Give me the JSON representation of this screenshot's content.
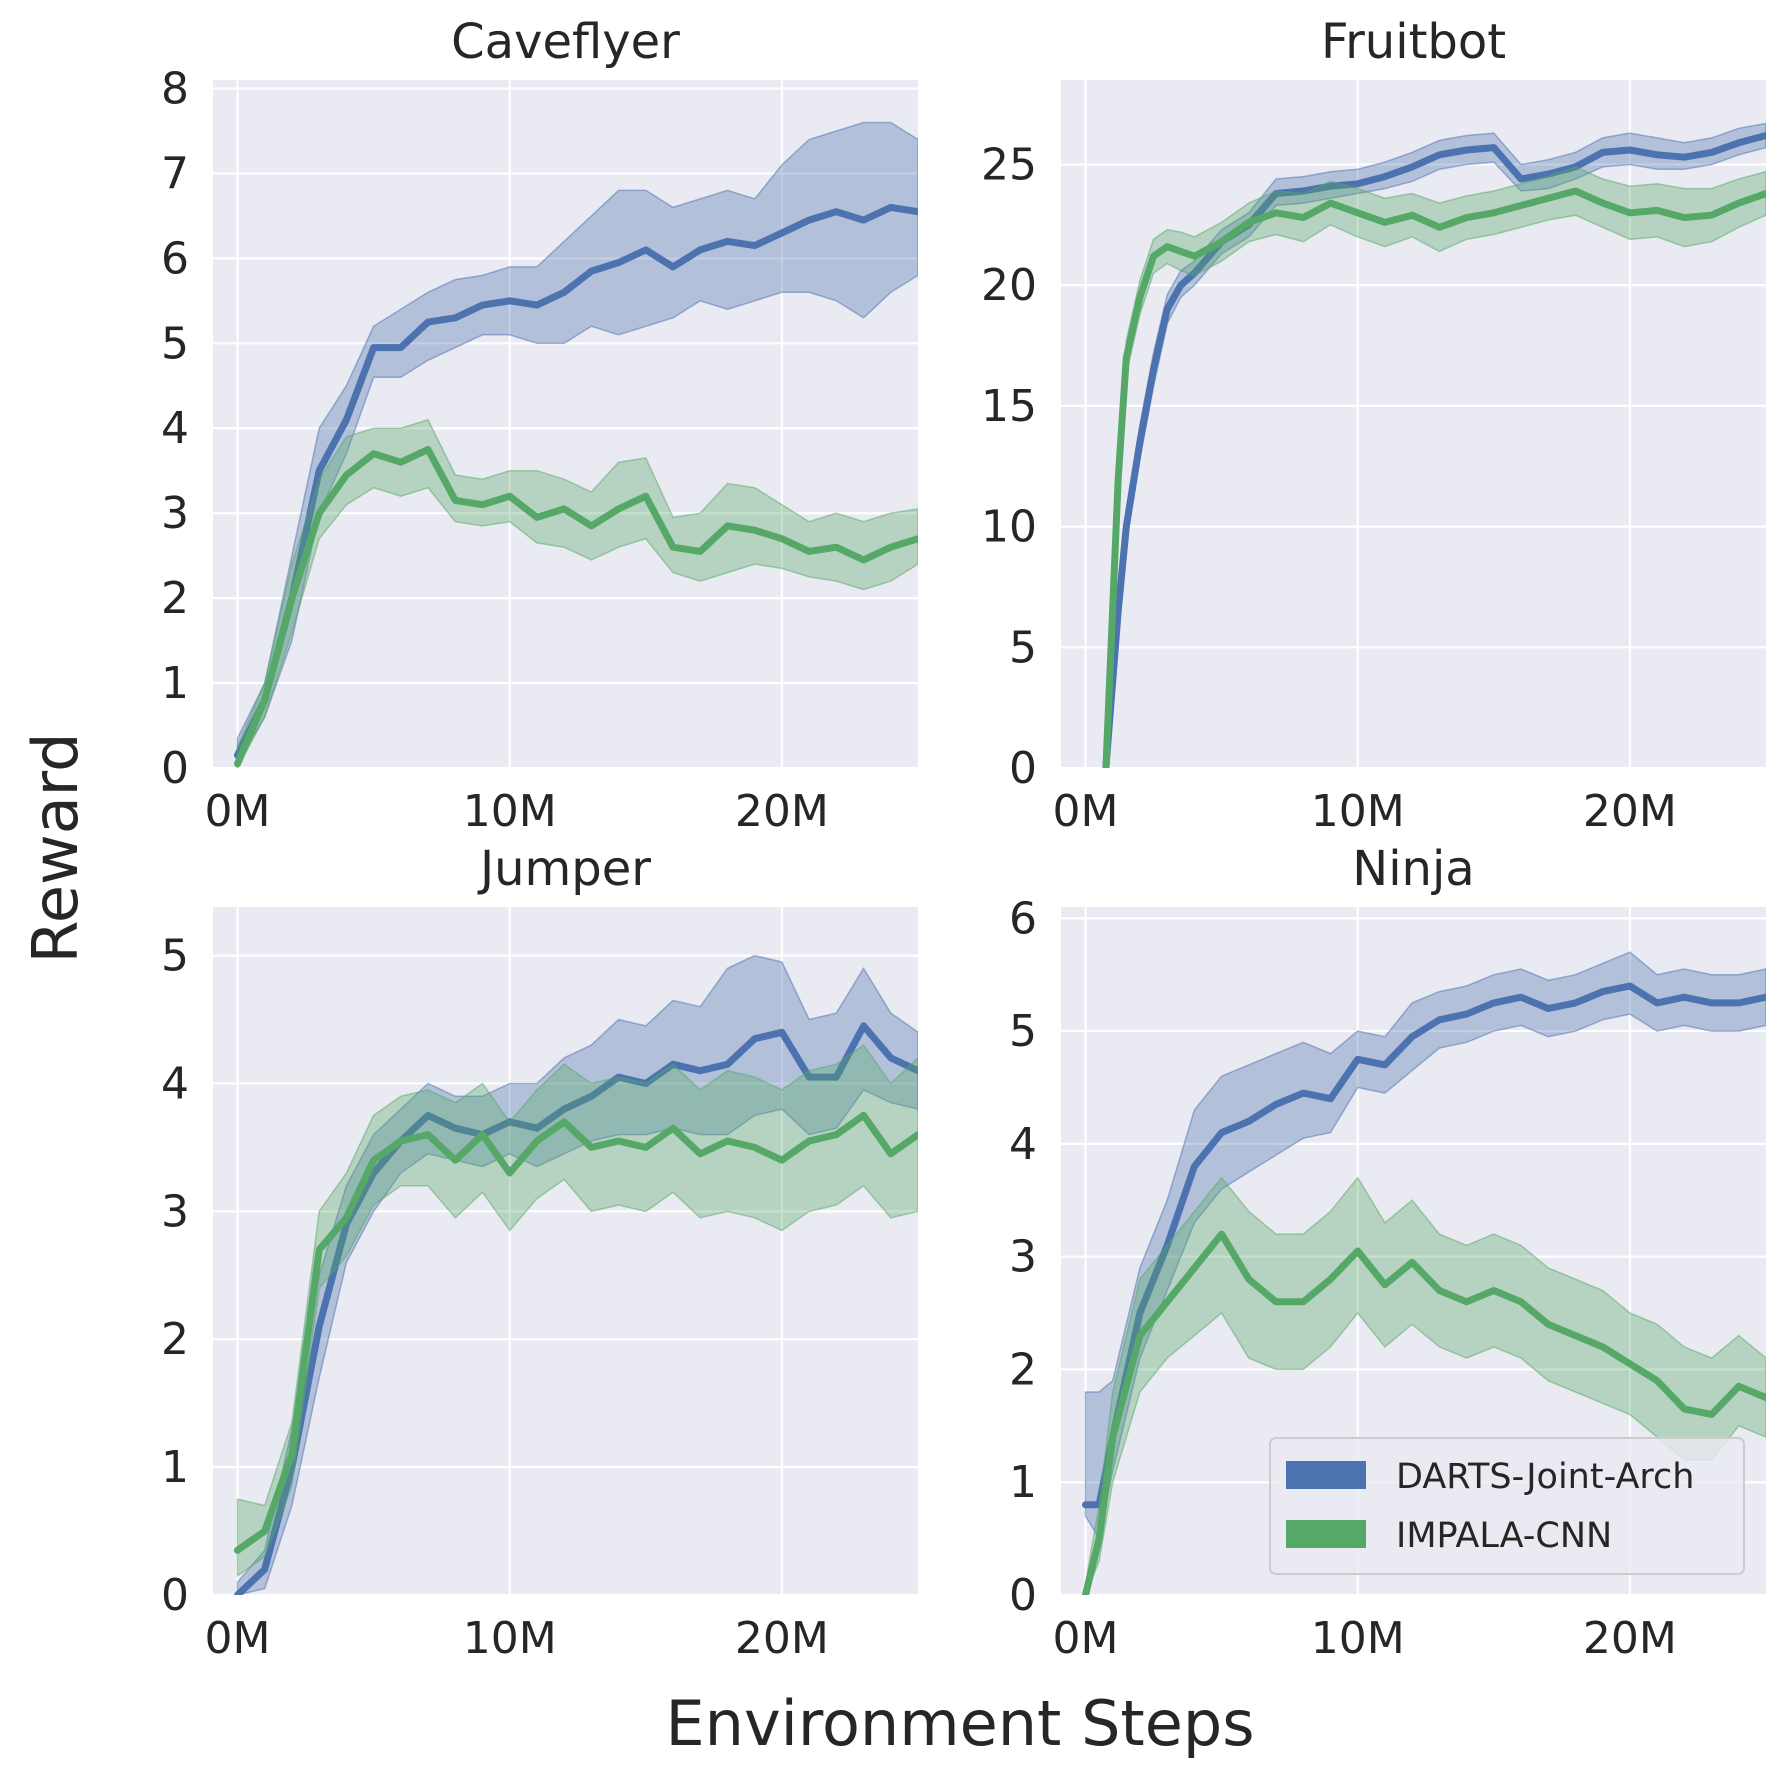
{
  "figure": {
    "xlabel": "Environment Steps",
    "ylabel": "Reward",
    "colors": {
      "background": "#eaeaf2",
      "grid": "#ffffff",
      "darts": "#4c72b0",
      "impala": "#55a868"
    }
  },
  "legend": {
    "position": "lower-right of Ninja panel",
    "entries": [
      {
        "label": "DARTS-Joint-Arch",
        "color": "#4c72b0"
      },
      {
        "label": "IMPALA-CNN",
        "color": "#55a868"
      }
    ]
  },
  "chart_data": [
    {
      "type": "line",
      "title": "Caveflyer",
      "xlim": [
        -0.9,
        25
      ],
      "ylim": [
        0,
        8.1
      ],
      "xticks": [
        0,
        10,
        20
      ],
      "xtick_labels": [
        "0M",
        "10M",
        "20M"
      ],
      "yticks": [
        0,
        1,
        2,
        3,
        4,
        5,
        6,
        7,
        8
      ],
      "ytick_labels": [
        "0",
        "1",
        "2",
        "3",
        "4",
        "5",
        "6",
        "7",
        "8"
      ],
      "x": [
        0,
        1,
        2,
        3,
        4,
        5,
        6,
        7,
        8,
        9,
        10,
        11,
        12,
        13,
        14,
        15,
        16,
        17,
        18,
        19,
        20,
        21,
        22,
        23,
        24,
        25
      ],
      "series": [
        {
          "name": "DARTS-Joint-Arch",
          "values": [
            0.15,
            0.8,
            2.0,
            3.5,
            4.1,
            4.95,
            4.95,
            5.25,
            5.3,
            5.45,
            5.5,
            5.45,
            5.6,
            5.85,
            5.95,
            6.1,
            5.9,
            6.1,
            6.2,
            6.15,
            6.3,
            6.45,
            6.55,
            6.45,
            6.6,
            6.55
          ],
          "lower": [
            0.05,
            0.6,
            1.5,
            3.0,
            3.7,
            4.6,
            4.6,
            4.8,
            4.95,
            5.1,
            5.1,
            5.0,
            5.0,
            5.2,
            5.1,
            5.2,
            5.3,
            5.5,
            5.4,
            5.5,
            5.6,
            5.6,
            5.5,
            5.3,
            5.6,
            5.8
          ],
          "upper": [
            0.35,
            1.0,
            2.5,
            4.0,
            4.5,
            5.2,
            5.4,
            5.6,
            5.75,
            5.8,
            5.9,
            5.9,
            6.2,
            6.5,
            6.8,
            6.8,
            6.6,
            6.7,
            6.8,
            6.7,
            7.1,
            7.4,
            7.5,
            7.6,
            7.6,
            7.4
          ]
        },
        {
          "name": "IMPALA-CNN",
          "values": [
            0.05,
            0.8,
            2.0,
            3.0,
            3.45,
            3.7,
            3.6,
            3.75,
            3.15,
            3.1,
            3.2,
            2.95,
            3.05,
            2.85,
            3.05,
            3.2,
            2.6,
            2.55,
            2.85,
            2.8,
            2.7,
            2.55,
            2.6,
            2.45,
            2.6,
            2.7
          ],
          "lower": [
            0.0,
            0.6,
            1.6,
            2.7,
            3.1,
            3.3,
            3.2,
            3.3,
            2.9,
            2.85,
            2.9,
            2.65,
            2.6,
            2.45,
            2.6,
            2.7,
            2.3,
            2.2,
            2.3,
            2.4,
            2.35,
            2.25,
            2.2,
            2.1,
            2.2,
            2.4
          ],
          "upper": [
            0.25,
            1.0,
            2.4,
            3.4,
            3.9,
            4.0,
            4.0,
            4.1,
            3.45,
            3.4,
            3.5,
            3.5,
            3.4,
            3.25,
            3.6,
            3.65,
            2.95,
            3.0,
            3.35,
            3.3,
            3.1,
            2.9,
            3.0,
            2.9,
            3.0,
            3.05
          ]
        }
      ]
    },
    {
      "type": "line",
      "title": "Fruitbot",
      "xlim": [
        -0.9,
        25
      ],
      "ylim": [
        0,
        28.5
      ],
      "xticks": [
        0,
        10,
        20
      ],
      "xtick_labels": [
        "0M",
        "10M",
        "20M"
      ],
      "yticks": [
        0,
        5,
        10,
        15,
        20,
        25
      ],
      "ytick_labels": [
        "0",
        "5",
        "10",
        "15",
        "20",
        "25"
      ],
      "x": [
        0.75,
        1.2,
        1.5,
        2,
        2.5,
        3,
        3.5,
        4,
        5,
        6,
        7,
        8,
        9,
        10,
        11,
        12,
        13,
        14,
        15,
        16,
        17,
        18,
        19,
        20,
        21,
        22,
        23,
        24,
        25
      ],
      "series": [
        {
          "name": "DARTS-Joint-Arch",
          "values": [
            0,
            6.5,
            10,
            13.5,
            16.5,
            19,
            20,
            20.5,
            21.8,
            22.5,
            23.8,
            23.9,
            24.1,
            24.2,
            24.5,
            24.9,
            25.4,
            25.6,
            25.7,
            24.4,
            24.6,
            24.9,
            25.5,
            25.6,
            25.4,
            25.3,
            25.5,
            25.9,
            26.2
          ],
          "lower": [
            0,
            5.8,
            9.3,
            12.8,
            15.8,
            18.4,
            19.5,
            20.0,
            21.3,
            22.0,
            23.3,
            23.4,
            23.6,
            23.8,
            24.0,
            24.3,
            24.8,
            25.0,
            25.1,
            23.9,
            24.0,
            24.4,
            24.9,
            25.0,
            24.8,
            24.8,
            25.0,
            25.4,
            25.7
          ],
          "upper": [
            0,
            7.2,
            10.7,
            14.2,
            17.2,
            19.6,
            20.6,
            21.0,
            22.3,
            23.0,
            24.4,
            24.5,
            24.7,
            24.8,
            25.1,
            25.5,
            26.0,
            26.2,
            26.3,
            25.0,
            25.2,
            25.5,
            26.1,
            26.3,
            26.1,
            25.9,
            26.1,
            26.5,
            26.7
          ]
        },
        {
          "name": "IMPALA-CNN",
          "values": [
            0,
            12,
            17,
            19.5,
            21.2,
            21.6,
            21.4,
            21.2,
            21.8,
            22.6,
            23.0,
            22.8,
            23.4,
            23.0,
            22.6,
            22.9,
            22.4,
            22.8,
            23.0,
            23.3,
            23.6,
            23.9,
            23.4,
            23.0,
            23.1,
            22.8,
            22.9,
            23.4,
            23.8
          ],
          "lower": [
            0,
            11.3,
            16.3,
            18.8,
            20.5,
            20.9,
            20.6,
            20.4,
            21.0,
            21.8,
            22.1,
            21.8,
            22.5,
            22.0,
            21.6,
            22.0,
            21.4,
            21.9,
            22.1,
            22.4,
            22.7,
            22.9,
            22.4,
            21.9,
            22.0,
            21.6,
            21.8,
            22.4,
            22.9
          ],
          "upper": [
            0,
            12.7,
            17.7,
            20.2,
            21.9,
            22.3,
            22.2,
            22.0,
            22.6,
            23.4,
            23.9,
            23.8,
            24.3,
            24.0,
            23.6,
            23.8,
            23.4,
            23.7,
            23.9,
            24.2,
            24.5,
            24.9,
            24.4,
            24.1,
            24.2,
            24.0,
            24.0,
            24.4,
            24.7
          ]
        }
      ]
    },
    {
      "type": "line",
      "title": "Jumper",
      "xlim": [
        -0.9,
        25
      ],
      "ylim": [
        0,
        5.38
      ],
      "xticks": [
        0,
        10,
        20
      ],
      "xtick_labels": [
        "0M",
        "10M",
        "20M"
      ],
      "yticks": [
        0,
        1,
        2,
        3,
        4,
        5
      ],
      "ytick_labels": [
        "0",
        "1",
        "2",
        "3",
        "4",
        "5"
      ],
      "x": [
        0,
        1,
        2,
        3,
        4,
        5,
        6,
        7,
        8,
        9,
        10,
        11,
        12,
        13,
        14,
        15,
        16,
        17,
        18,
        19,
        20,
        21,
        22,
        23,
        24,
        25
      ],
      "series": [
        {
          "name": "DARTS-Joint-Arch",
          "values": [
            0.0,
            0.2,
            1.0,
            2.1,
            2.9,
            3.3,
            3.55,
            3.75,
            3.65,
            3.6,
            3.7,
            3.65,
            3.8,
            3.9,
            4.05,
            4.0,
            4.15,
            4.1,
            4.15,
            4.35,
            4.4,
            4.05,
            4.05,
            4.45,
            4.2,
            4.1
          ],
          "lower": [
            0.0,
            0.05,
            0.7,
            1.7,
            2.6,
            3.0,
            3.3,
            3.45,
            3.4,
            3.35,
            3.45,
            3.35,
            3.45,
            3.55,
            3.6,
            3.6,
            3.65,
            3.6,
            3.6,
            3.75,
            3.8,
            3.6,
            3.65,
            3.95,
            3.85,
            3.8
          ],
          "upper": [
            0.1,
            0.35,
            1.3,
            2.5,
            3.2,
            3.6,
            3.8,
            4.0,
            3.9,
            3.9,
            4.0,
            4.0,
            4.2,
            4.3,
            4.5,
            4.45,
            4.65,
            4.6,
            4.9,
            5.0,
            4.95,
            4.5,
            4.55,
            4.9,
            4.55,
            4.4
          ]
        },
        {
          "name": "IMPALA-CNN",
          "values": [
            0.35,
            0.5,
            1.1,
            2.7,
            2.95,
            3.4,
            3.55,
            3.6,
            3.4,
            3.6,
            3.3,
            3.55,
            3.7,
            3.5,
            3.55,
            3.5,
            3.65,
            3.45,
            3.55,
            3.5,
            3.4,
            3.55,
            3.6,
            3.75,
            3.45,
            3.6
          ],
          "lower": [
            0.15,
            0.3,
            0.85,
            2.4,
            2.65,
            3.05,
            3.2,
            3.2,
            2.95,
            3.15,
            2.85,
            3.1,
            3.25,
            3.0,
            3.05,
            3.0,
            3.15,
            2.95,
            3.0,
            2.95,
            2.85,
            3.0,
            3.05,
            3.2,
            2.95,
            3.0
          ],
          "upper": [
            0.75,
            0.7,
            1.35,
            3.0,
            3.3,
            3.75,
            3.9,
            3.95,
            3.85,
            4.0,
            3.7,
            3.95,
            4.15,
            4.0,
            4.05,
            4.0,
            4.15,
            3.95,
            4.1,
            4.05,
            3.95,
            4.1,
            4.15,
            4.3,
            4.0,
            4.2
          ]
        }
      ]
    },
    {
      "type": "line",
      "title": "Ninja",
      "xlim": [
        -0.9,
        25
      ],
      "ylim": [
        0,
        6.1
      ],
      "xticks": [
        0,
        10,
        20
      ],
      "xtick_labels": [
        "0M",
        "10M",
        "20M"
      ],
      "yticks": [
        0,
        1,
        2,
        3,
        4,
        5,
        6
      ],
      "ytick_labels": [
        "0",
        "1",
        "2",
        "3",
        "4",
        "5",
        "6"
      ],
      "x": [
        0,
        0.5,
        1,
        2,
        3,
        4,
        5,
        6,
        7,
        8,
        9,
        10,
        11,
        12,
        13,
        14,
        15,
        16,
        17,
        18,
        19,
        20,
        21,
        22,
        23,
        24,
        25
      ],
      "series": [
        {
          "name": "DARTS-Joint-Arch",
          "values": [
            0.8,
            0.8,
            1.4,
            2.5,
            3.1,
            3.8,
            4.1,
            4.2,
            4.35,
            4.45,
            4.4,
            4.75,
            4.7,
            4.95,
            5.1,
            5.15,
            5.25,
            5.3,
            5.2,
            5.25,
            5.35,
            5.4,
            5.25,
            5.3,
            5.25,
            5.25,
            5.3
          ],
          "lower": [
            0.7,
            0.5,
            1.1,
            2.1,
            2.7,
            3.3,
            3.6,
            3.75,
            3.9,
            4.05,
            4.1,
            4.5,
            4.45,
            4.65,
            4.85,
            4.9,
            5.0,
            5.05,
            4.95,
            5.0,
            5.1,
            5.15,
            5.0,
            5.05,
            5.0,
            5.0,
            5.05
          ],
          "upper": [
            1.8,
            1.8,
            1.9,
            2.9,
            3.5,
            4.3,
            4.6,
            4.7,
            4.8,
            4.9,
            4.8,
            5.0,
            4.95,
            5.25,
            5.35,
            5.4,
            5.5,
            5.55,
            5.45,
            5.5,
            5.6,
            5.7,
            5.5,
            5.55,
            5.5,
            5.5,
            5.55
          ]
        },
        {
          "name": "IMPALA-CNN",
          "values": [
            0.0,
            0.5,
            1.4,
            2.3,
            2.6,
            2.9,
            3.2,
            2.8,
            2.6,
            2.6,
            2.8,
            3.05,
            2.75,
            2.95,
            2.7,
            2.6,
            2.7,
            2.6,
            2.4,
            2.3,
            2.2,
            2.05,
            1.9,
            1.65,
            1.6,
            1.85,
            1.75
          ],
          "lower": [
            0.0,
            0.3,
            1.0,
            1.8,
            2.1,
            2.3,
            2.5,
            2.1,
            2.0,
            2.0,
            2.2,
            2.5,
            2.2,
            2.4,
            2.2,
            2.1,
            2.2,
            2.1,
            1.9,
            1.8,
            1.7,
            1.6,
            1.4,
            1.2,
            1.2,
            1.5,
            1.4
          ],
          "upper": [
            0.1,
            0.8,
            1.8,
            2.8,
            3.1,
            3.4,
            3.7,
            3.4,
            3.2,
            3.2,
            3.4,
            3.7,
            3.3,
            3.5,
            3.2,
            3.1,
            3.2,
            3.1,
            2.9,
            2.8,
            2.7,
            2.5,
            2.4,
            2.2,
            2.1,
            2.3,
            2.1
          ]
        }
      ]
    }
  ]
}
